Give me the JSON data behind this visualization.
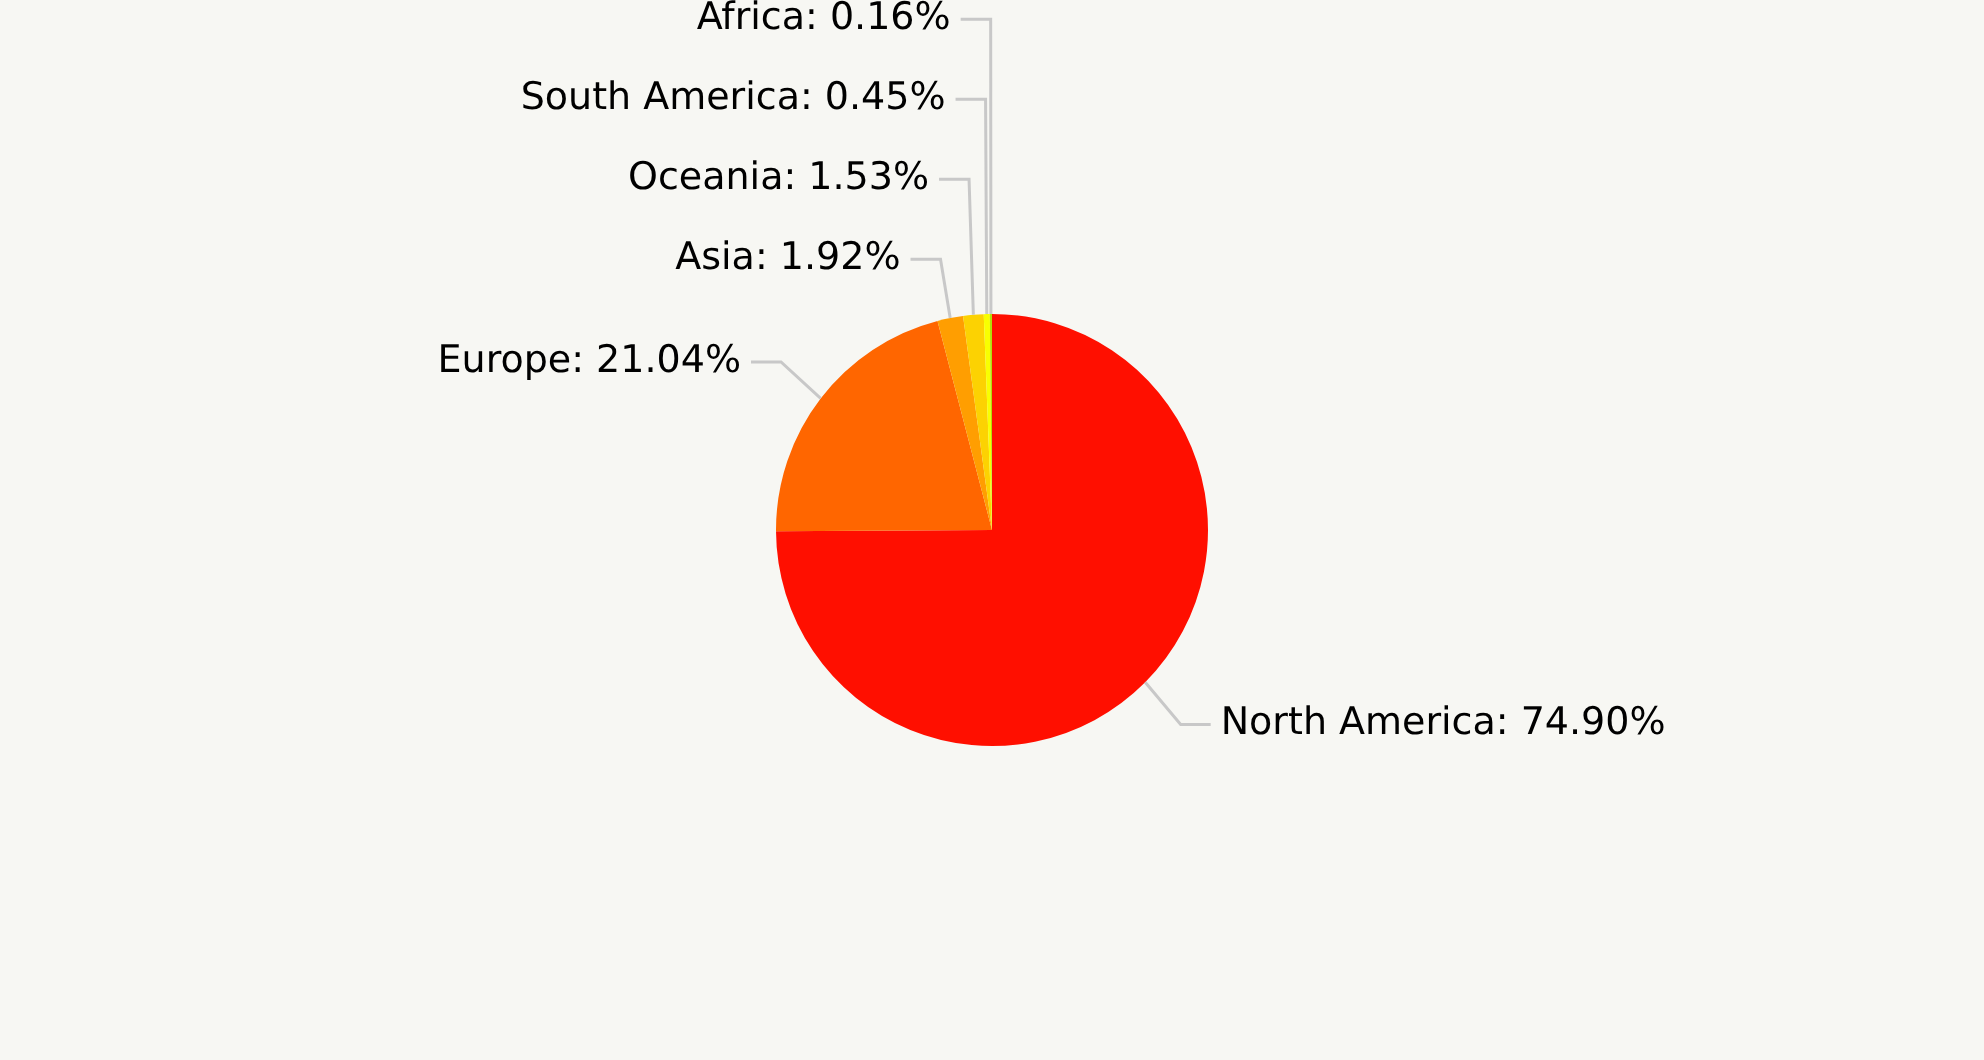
{
  "chart_data": {
    "type": "pie",
    "categories": [
      "North America",
      "Europe",
      "Asia",
      "Oceania",
      "South America",
      "Africa"
    ],
    "values": [
      74.9,
      21.04,
      1.92,
      1.53,
      0.45,
      0.16
    ],
    "value_labels": [
      "74.90%",
      "21.04%",
      "1.92%",
      "1.53%",
      "0.45%",
      "0.16%"
    ],
    "colors": [
      "#ff0f00",
      "#ff6600",
      "#ff9e01",
      "#fcd202",
      "#f8ff01",
      "#b0de09"
    ],
    "legend": false
  }
}
